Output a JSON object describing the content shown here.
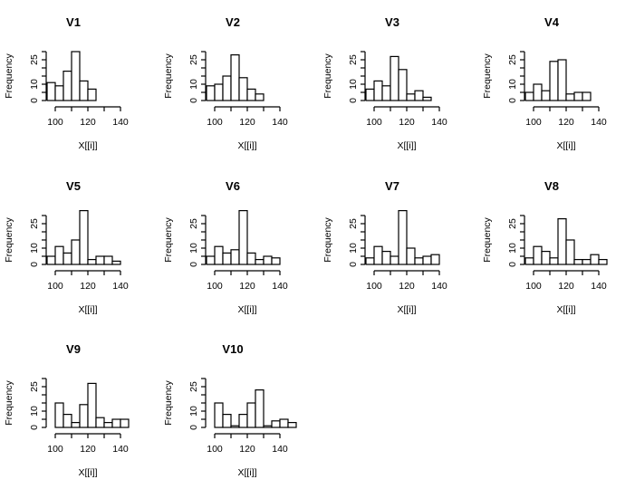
{
  "chart_data": [
    {
      "type": "bar",
      "title": "V1",
      "xlabel": "X[[i]]",
      "ylabel": "Frequency",
      "bin_width": 5,
      "bin_start": 95,
      "values": [
        11,
        9,
        18,
        30,
        12,
        7
      ],
      "xticks": [
        "100",
        "120",
        "140"
      ],
      "xtick_values": [
        100,
        110,
        120,
        130,
        140
      ],
      "yticks": [
        "0",
        "10",
        "25"
      ],
      "ytick_values": [
        0,
        5,
        10,
        15,
        20,
        25,
        30
      ],
      "xlim": [
        90,
        140
      ],
      "ylim": [
        0,
        30
      ]
    },
    {
      "type": "bar",
      "title": "V2",
      "xlabel": "X[[i]]",
      "ylabel": "Frequency",
      "bin_width": 5,
      "bin_start": 95,
      "values": [
        9,
        10,
        15,
        28,
        14,
        7,
        4
      ],
      "xticks": [
        "100",
        "120",
        "140"
      ],
      "xtick_values": [
        100,
        110,
        120,
        130,
        140
      ],
      "yticks": [
        "0",
        "10",
        "25"
      ],
      "ytick_values": [
        0,
        5,
        10,
        15,
        20,
        25,
        30
      ],
      "xlim": [
        90,
        140
      ],
      "ylim": [
        0,
        30
      ]
    },
    {
      "type": "bar",
      "title": "V3",
      "xlabel": "X[[i]]",
      "ylabel": "Frequency",
      "bin_width": 5,
      "bin_start": 95,
      "values": [
        7,
        12,
        9,
        27,
        19,
        4,
        6,
        2
      ],
      "xticks": [
        "100",
        "120",
        "140"
      ],
      "xtick_values": [
        100,
        110,
        120,
        130,
        140
      ],
      "yticks": [
        "0",
        "10",
        "25"
      ],
      "ytick_values": [
        0,
        5,
        10,
        15,
        20,
        25,
        30
      ],
      "xlim": [
        90,
        140
      ],
      "ylim": [
        0,
        30
      ]
    },
    {
      "type": "bar",
      "title": "V4",
      "xlabel": "X[[i]]",
      "ylabel": "Frequency",
      "bin_width": 5,
      "bin_start": 95,
      "values": [
        5,
        10,
        6,
        24,
        25,
        4,
        5,
        5
      ],
      "xticks": [
        "100",
        "120",
        "140"
      ],
      "xtick_values": [
        100,
        110,
        120,
        130,
        140
      ],
      "yticks": [
        "0",
        "10",
        "25"
      ],
      "ytick_values": [
        0,
        5,
        10,
        15,
        20,
        25,
        30
      ],
      "xlim": [
        90,
        140
      ],
      "ylim": [
        0,
        30
      ]
    },
    {
      "type": "bar",
      "title": "V5",
      "xlabel": "X[[i]]",
      "ylabel": "Frequency",
      "bin_width": 5,
      "bin_start": 95,
      "values": [
        5,
        11,
        7,
        15,
        33,
        3,
        5,
        5,
        2
      ],
      "xticks": [
        "100",
        "120",
        "140"
      ],
      "xtick_values": [
        100,
        110,
        120,
        130,
        140
      ],
      "yticks": [
        "0",
        "10",
        "25"
      ],
      "ytick_values": [
        0,
        5,
        10,
        15,
        20,
        25,
        30
      ],
      "xlim": [
        90,
        140
      ],
      "ylim": [
        0,
        30
      ]
    },
    {
      "type": "bar",
      "title": "V6",
      "xlabel": "X[[i]]",
      "ylabel": "Frequency",
      "bin_width": 5,
      "bin_start": 95,
      "values": [
        5,
        11,
        7,
        9,
        33,
        7,
        3,
        5,
        4
      ],
      "xticks": [
        "100",
        "120",
        "140"
      ],
      "xtick_values": [
        100,
        110,
        120,
        130,
        140
      ],
      "yticks": [
        "0",
        "10",
        "25"
      ],
      "ytick_values": [
        0,
        5,
        10,
        15,
        20,
        25,
        30
      ],
      "xlim": [
        90,
        140
      ],
      "ylim": [
        0,
        30
      ]
    },
    {
      "type": "bar",
      "title": "V7",
      "xlabel": "X[[i]]",
      "ylabel": "Frequency",
      "bin_width": 5,
      "bin_start": 95,
      "values": [
        4,
        11,
        8,
        5,
        33,
        10,
        4,
        5,
        6
      ],
      "xticks": [
        "100",
        "120",
        "140"
      ],
      "xtick_values": [
        100,
        110,
        120,
        130,
        140
      ],
      "yticks": [
        "0",
        "10",
        "25"
      ],
      "ytick_values": [
        0,
        5,
        10,
        15,
        20,
        25,
        30
      ],
      "xlim": [
        90,
        140
      ],
      "ylim": [
        0,
        30
      ]
    },
    {
      "type": "bar",
      "title": "V8",
      "xlabel": "X[[i]]",
      "ylabel": "Frequency",
      "bin_width": 5,
      "bin_start": 95,
      "values": [
        4,
        11,
        8,
        4,
        28,
        15,
        3,
        3,
        6,
        3
      ],
      "xticks": [
        "100",
        "120",
        "140"
      ],
      "xtick_values": [
        100,
        110,
        120,
        130,
        140
      ],
      "yticks": [
        "0",
        "10",
        "25"
      ],
      "ytick_values": [
        0,
        5,
        10,
        15,
        20,
        25,
        30
      ],
      "xlim": [
        90,
        145
      ],
      "ylim": [
        0,
        30
      ]
    },
    {
      "type": "bar",
      "title": "V9",
      "xlabel": "X[[i]]",
      "ylabel": "Frequency",
      "bin_width": 5,
      "bin_start": 100,
      "values": [
        15,
        8,
        3,
        14,
        27,
        6,
        3,
        5,
        5
      ],
      "xticks": [
        "100",
        "120",
        "140"
      ],
      "xtick_values": [
        100,
        110,
        120,
        130,
        140
      ],
      "yticks": [
        "0",
        "10",
        "25"
      ],
      "ytick_values": [
        0,
        5,
        10,
        15,
        20,
        25,
        30
      ],
      "xlim": [
        90,
        145
      ],
      "ylim": [
        0,
        30
      ]
    },
    {
      "type": "bar",
      "title": "V10",
      "xlabel": "X[[i]]",
      "ylabel": "Frequency",
      "bin_width": 5,
      "bin_start": 100,
      "values": [
        15,
        8,
        1,
        8,
        15,
        23,
        1,
        4,
        5,
        3
      ],
      "xticks": [
        "100",
        "120",
        "140"
      ],
      "xtick_values": [
        100,
        110,
        120,
        130,
        140
      ],
      "yticks": [
        "0",
        "10",
        "25"
      ],
      "ytick_values": [
        0,
        5,
        10,
        15,
        20,
        25,
        30
      ],
      "xlim": [
        90,
        150
      ],
      "ylim": [
        0,
        30
      ]
    }
  ]
}
